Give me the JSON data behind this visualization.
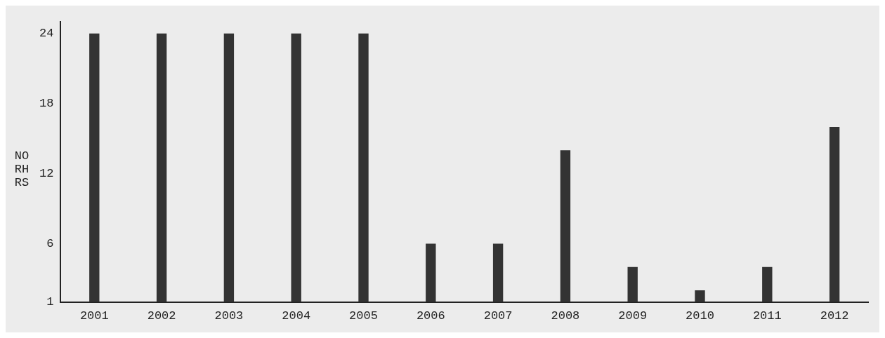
{
  "chart_data": {
    "type": "bar",
    "ylabel": "NORHRS",
    "categories": [
      "2001",
      "2002",
      "2003",
      "2004",
      "2005",
      "2006",
      "2007",
      "2008",
      "2009",
      "2010",
      "2011",
      "2012"
    ],
    "values": [
      24,
      24,
      24,
      24,
      24,
      6,
      6,
      14,
      4,
      2,
      4,
      16
    ],
    "color": "#333333",
    "ylim": [
      1,
      25
    ],
    "yticks": [
      1,
      6,
      12,
      18,
      24
    ],
    "grid": false,
    "legend": false
  }
}
